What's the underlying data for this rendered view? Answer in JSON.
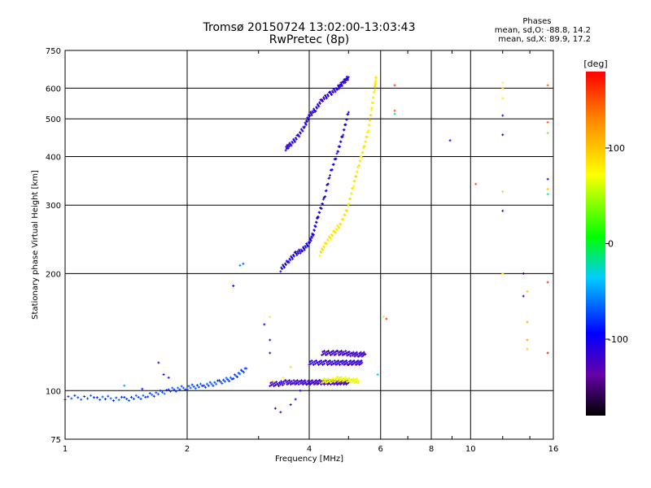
{
  "header": {
    "title_line1": "Tromsø 20150724 13:02:00-13:03:43",
    "title_line2": "RwPretec (8p)"
  },
  "phases": {
    "title": "Phases",
    "line_o": "mean, sd,O: -88.8, 14.2",
    "line_x": "mean, sd,X:  89.9, 17.2"
  },
  "colorbar": {
    "unit_label": "[deg]",
    "ticks": [
      {
        "value": 100,
        "label": "100"
      },
      {
        "value": 0,
        "label": "0"
      },
      {
        "value": -100,
        "label": "-100"
      }
    ],
    "range": [
      -180,
      180
    ]
  },
  "chart_data": {
    "type": "scatter",
    "title": "Tromsø 20150724 13:02:00-13:03:43",
    "subtitle": "RwPretec (8p)",
    "xlabel": "Frequency [MHz]",
    "ylabel": "Stationary phase Virtual Height [km]",
    "x_scale": "log",
    "y_scale": "log",
    "xlim": [
      1,
      16
    ],
    "ylim": [
      75,
      750
    ],
    "grid": true,
    "x_ticks": [
      {
        "value": 1,
        "label": "1"
      },
      {
        "value": 2,
        "label": "2"
      },
      {
        "value": 4,
        "label": "4"
      },
      {
        "value": 6,
        "label": "6"
      },
      {
        "value": 8,
        "label": "8"
      },
      {
        "value": 10,
        "label": "10"
      },
      {
        "value": 16,
        "label": "16"
      }
    ],
    "y_ticks": [
      {
        "value": 75,
        "label": "75"
      },
      {
        "value": 100,
        "label": "100"
      },
      {
        "value": 200,
        "label": "200"
      },
      {
        "value": 300,
        "label": "300"
      },
      {
        "value": 400,
        "label": "400"
      },
      {
        "value": 500,
        "label": "500"
      },
      {
        "value": 600,
        "label": "600"
      },
      {
        "value": 750,
        "label": "750"
      }
    ],
    "color_scale": {
      "min": -180,
      "max": 180,
      "unit": "deg"
    },
    "traces": [
      {
        "f": [
          1.0,
          1.2,
          1.4,
          1.6,
          1.8,
          2.0,
          2.2,
          2.4,
          2.6,
          2.8
        ],
        "h": [
          96,
          96,
          95,
          97,
          100,
          102,
          103,
          105,
          108,
          114
        ],
        "phase": -75
      },
      {
        "f": [
          3.4,
          3.55,
          3.7,
          3.85,
          4.0,
          4.1,
          4.2,
          4.35,
          4.5,
          4.7,
          4.85,
          5.0
        ],
        "h": [
          205,
          215,
          225,
          230,
          240,
          255,
          280,
          310,
          360,
          410,
          460,
          520
        ],
        "phase": -105
      },
      {
        "f": [
          3.5,
          3.6,
          3.75,
          3.9,
          4.0,
          4.15,
          4.3,
          4.5,
          4.7,
          4.85,
          5.0
        ],
        "h": [
          420,
          430,
          450,
          480,
          510,
          530,
          560,
          580,
          600,
          620,
          640
        ],
        "phase": -110
      },
      {
        "f": [
          4.25,
          4.4,
          4.6,
          4.8,
          5.0,
          5.15,
          5.3,
          5.45,
          5.6,
          5.7,
          5.8,
          5.85
        ],
        "h": [
          225,
          240,
          255,
          270,
          300,
          340,
          380,
          420,
          470,
          530,
          600,
          640
        ],
        "phase": 85
      },
      {
        "f": [
          3.2,
          3.35,
          3.5,
          3.65,
          3.8,
          3.95,
          4.1,
          4.25,
          4.4,
          4.55,
          4.7,
          4.85,
          5.0
        ],
        "h": [
          104,
          104,
          105,
          105,
          105,
          105,
          105,
          105,
          105,
          105,
          105,
          105,
          105
        ],
        "phase": -120
      },
      {
        "f": [
          4.3,
          4.5,
          4.7,
          4.9,
          5.1,
          5.3
        ],
        "h": [
          106,
          106,
          107,
          107,
          106,
          106
        ],
        "phase": 70
      },
      {
        "f": [
          4.0,
          4.2,
          4.4,
          4.6,
          4.8,
          5.0,
          5.2,
          5.4
        ],
        "h": [
          118,
          118,
          118,
          118,
          118,
          118,
          118,
          118
        ],
        "phase": -115
      },
      {
        "f": [
          4.3,
          4.5,
          4.7,
          4.9,
          5.1,
          5.3,
          5.5
        ],
        "h": [
          125,
          125,
          125,
          125,
          124,
          124,
          124
        ],
        "phase": -120
      }
    ],
    "points": [
      {
        "f": 1.4,
        "h": 103,
        "phase": -50
      },
      {
        "f": 1.55,
        "h": 101,
        "phase": -90
      },
      {
        "f": 1.7,
        "h": 118,
        "phase": -110
      },
      {
        "f": 1.75,
        "h": 110,
        "phase": -120
      },
      {
        "f": 1.8,
        "h": 108,
        "phase": -110
      },
      {
        "f": 2.6,
        "h": 186,
        "phase": -100
      },
      {
        "f": 2.7,
        "h": 210,
        "phase": -60
      },
      {
        "f": 2.75,
        "h": 212,
        "phase": -70
      },
      {
        "f": 3.1,
        "h": 148,
        "phase": -100
      },
      {
        "f": 3.2,
        "h": 155,
        "phase": 80
      },
      {
        "f": 3.2,
        "h": 135,
        "phase": -115
      },
      {
        "f": 3.3,
        "h": 90,
        "phase": -150
      },
      {
        "f": 3.4,
        "h": 88,
        "phase": -120
      },
      {
        "f": 3.6,
        "h": 92,
        "phase": -110
      },
      {
        "f": 3.6,
        "h": 115,
        "phase": 90
      },
      {
        "f": 3.25,
        "h": 106,
        "phase": 80
      },
      {
        "f": 3.45,
        "h": 108,
        "phase": 70
      },
      {
        "f": 5.9,
        "h": 110,
        "phase": -30
      },
      {
        "f": 6.1,
        "h": 155,
        "phase": 60
      },
      {
        "f": 6.2,
        "h": 153,
        "phase": 160
      },
      {
        "f": 6.5,
        "h": 610,
        "phase": 160
      },
      {
        "f": 6.5,
        "h": 515,
        "phase": -20
      },
      {
        "f": 6.5,
        "h": 525,
        "phase": 150
      },
      {
        "f": 8.9,
        "h": 440,
        "phase": -110
      },
      {
        "f": 10.3,
        "h": 340,
        "phase": 150
      },
      {
        "f": 12.0,
        "h": 600,
        "phase": 90
      },
      {
        "f": 12.0,
        "h": 565,
        "phase": 80
      },
      {
        "f": 12.0,
        "h": 510,
        "phase": -120
      },
      {
        "f": 12.0,
        "h": 455,
        "phase": -100
      },
      {
        "f": 12.0,
        "h": 325,
        "phase": 95
      },
      {
        "f": 12.0,
        "h": 290,
        "phase": -110
      },
      {
        "f": 12.0,
        "h": 200,
        "phase": 80
      },
      {
        "f": 13.5,
        "h": 200,
        "phase": -160
      },
      {
        "f": 13.5,
        "h": 175,
        "phase": -150
      },
      {
        "f": 13.8,
        "h": 180,
        "phase": 100
      },
      {
        "f": 13.8,
        "h": 150,
        "phase": 110
      },
      {
        "f": 13.8,
        "h": 135,
        "phase": 120
      },
      {
        "f": 13.8,
        "h": 128,
        "phase": 95
      },
      {
        "f": 15.5,
        "h": 610,
        "phase": 140
      },
      {
        "f": 15.5,
        "h": 460,
        "phase": 40
      },
      {
        "f": 15.5,
        "h": 350,
        "phase": -110
      },
      {
        "f": 15.5,
        "h": 330,
        "phase": 100
      },
      {
        "f": 15.5,
        "h": 320,
        "phase": -20
      },
      {
        "f": 15.5,
        "h": 490,
        "phase": 150
      },
      {
        "f": 15.5,
        "h": 190,
        "phase": 160
      },
      {
        "f": 15.5,
        "h": 125,
        "phase": 170
      },
      {
        "f": 12.0,
        "h": 620,
        "phase": 70
      },
      {
        "f": 3.2,
        "h": 125,
        "phase": -130
      },
      {
        "f": 3.8,
        "h": 100,
        "phase": -100
      },
      {
        "f": 3.7,
        "h": 95,
        "phase": -90
      }
    ]
  }
}
